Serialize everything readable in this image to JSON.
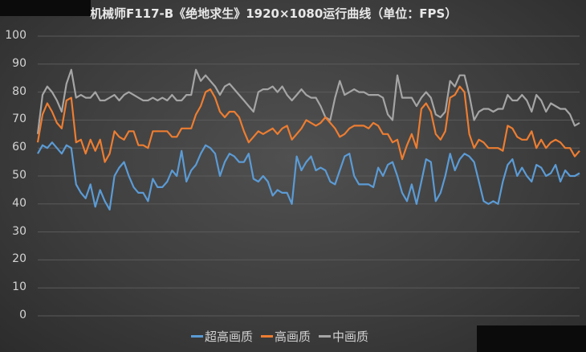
{
  "header": {
    "title": "机械师F117-B《绝地求生》1920×1080运行曲线（单位：FPS）"
  },
  "legend": [
    {
      "label": "超高画质",
      "color": "#5b9bd5"
    },
    {
      "label": "高画质",
      "color": "#ed7d31"
    },
    {
      "label": "中画质",
      "color": "#a5a5a5"
    }
  ],
  "y_ticks": [
    "100",
    "90",
    "80",
    "70",
    "60",
    "50",
    "40",
    "30",
    "20",
    "10",
    "0"
  ],
  "chart_data": {
    "type": "line",
    "title": "机械师F117-B《绝地求生》1920×1080运行曲线（单位：FPS）",
    "xlabel": "",
    "ylabel": "FPS",
    "ylim": [
      0,
      100
    ],
    "yticks": [
      0,
      10,
      20,
      30,
      40,
      50,
      60,
      70,
      80,
      90,
      100
    ],
    "grid": true,
    "legend_position": "bottom",
    "x": [
      1,
      2,
      3,
      4,
      5,
      6,
      7,
      8,
      9,
      10,
      11,
      12,
      13,
      14,
      15,
      16,
      17,
      18,
      19,
      20,
      21,
      22,
      23,
      24,
      25,
      26,
      27,
      28,
      29,
      30,
      31,
      32,
      33,
      34,
      35,
      36,
      37,
      38,
      39,
      40,
      41,
      42,
      43,
      44,
      45,
      46,
      47,
      48,
      49,
      50,
      51,
      52,
      53,
      54,
      55,
      56,
      57,
      58,
      59,
      60,
      61,
      62,
      63,
      64,
      65,
      66,
      67,
      68,
      69,
      70,
      71,
      72,
      73,
      74,
      75,
      76,
      77,
      78,
      79,
      80,
      81,
      82,
      83,
      84,
      85,
      86,
      87,
      88,
      89,
      90,
      91,
      92,
      93,
      94,
      95,
      96,
      97,
      98,
      99,
      100,
      101,
      102,
      103,
      104,
      105,
      106,
      107,
      108,
      109,
      110,
      111,
      112,
      113,
      114
    ],
    "series": [
      {
        "name": "超高画质",
        "color": "#5b9bd5",
        "values": [
          58,
          61,
          60,
          62,
          60,
          58,
          61,
          60,
          47,
          44,
          42,
          47,
          39,
          45,
          41,
          38,
          50,
          53,
          55,
          50,
          46,
          44,
          44,
          41,
          49,
          46,
          46,
          48,
          52,
          50,
          59,
          48,
          52,
          54,
          58,
          61,
          60,
          58,
          50,
          55,
          58,
          57,
          55,
          55,
          58,
          49,
          48,
          50,
          48,
          43,
          45,
          44,
          44,
          40,
          57,
          52,
          55,
          57,
          52,
          53,
          52,
          48,
          47,
          52,
          57,
          58,
          50,
          47,
          47,
          47,
          46,
          53,
          50,
          54,
          55,
          50,
          44,
          41,
          47,
          40,
          48,
          56,
          55,
          41,
          44,
          50,
          58,
          52,
          56,
          58,
          57,
          55,
          48,
          41,
          40,
          41,
          40,
          48,
          54,
          56,
          50,
          53,
          50,
          48,
          54,
          53,
          50,
          51,
          54,
          48,
          52,
          50,
          50,
          51
        ]
      },
      {
        "name": "高画质",
        "color": "#ed7d31",
        "values": [
          62,
          72,
          76,
          73,
          69,
          67,
          77,
          78,
          62,
          63,
          58,
          63,
          59,
          63,
          55,
          58,
          66,
          64,
          63,
          66,
          66,
          61,
          61,
          60,
          66,
          66,
          66,
          66,
          64,
          64,
          67,
          67,
          67,
          72,
          75,
          80,
          81,
          78,
          73,
          71,
          73,
          73,
          71,
          66,
          62,
          64,
          66,
          65,
          66,
          67,
          65,
          67,
          68,
          63,
          65,
          67,
          70,
          69,
          68,
          69,
          71,
          69,
          67,
          64,
          65,
          67,
          68,
          68,
          68,
          67,
          69,
          68,
          65,
          65,
          62,
          63,
          56,
          61,
          65,
          60,
          74,
          76,
          73,
          65,
          63,
          66,
          78,
          79,
          82,
          80,
          65,
          60,
          63,
          62,
          60,
          60,
          60,
          59,
          68,
          67,
          64,
          63,
          63,
          66,
          60,
          63,
          60,
          62,
          63,
          62,
          60,
          60,
          57,
          59
        ]
      },
      {
        "name": "中画质",
        "color": "#a5a5a5",
        "values": [
          65,
          79,
          82,
          80,
          77,
          73,
          83,
          88,
          78,
          79,
          78,
          78,
          80,
          77,
          77,
          78,
          79,
          77,
          79,
          80,
          79,
          78,
          77,
          77,
          78,
          77,
          78,
          77,
          79,
          77,
          77,
          79,
          79,
          88,
          84,
          86,
          84,
          82,
          79,
          82,
          83,
          81,
          79,
          77,
          75,
          73,
          80,
          81,
          81,
          82,
          80,
          82,
          79,
          77,
          79,
          81,
          79,
          78,
          78,
          75,
          71,
          70,
          78,
          84,
          79,
          80,
          81,
          80,
          80,
          79,
          79,
          79,
          78,
          72,
          70,
          86,
          78,
          78,
          78,
          75,
          78,
          80,
          78,
          72,
          71,
          73,
          84,
          82,
          86,
          86,
          79,
          70,
          73,
          74,
          74,
          73,
          74,
          74,
          79,
          77,
          77,
          79,
          77,
          73,
          79,
          77,
          73,
          76,
          75,
          74,
          74,
          72,
          68,
          69
        ]
      }
    ]
  }
}
